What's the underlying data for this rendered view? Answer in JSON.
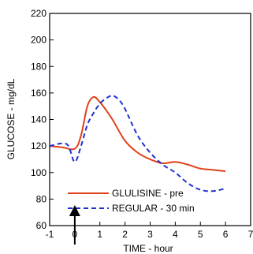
{
  "chart_data": {
    "type": "line",
    "xlabel": "TIME - hour",
    "ylabel": "GLUCOSE - mg/dL",
    "xlim": [
      -1,
      7
    ],
    "ylim": [
      60,
      220
    ],
    "x_ticks": [
      "-1",
      "0",
      "1",
      "2",
      "3",
      "4",
      "5",
      "6",
      "7"
    ],
    "y_ticks": [
      "60",
      "80",
      "100",
      "120",
      "140",
      "160",
      "180",
      "200",
      "220"
    ],
    "grid": false,
    "legend_position": "bottom-center",
    "annotation": {
      "type": "arrow",
      "x": 0,
      "points": "up"
    },
    "series": [
      {
        "name": "GLULISINE - pre",
        "color": "#e0401a",
        "style": "solid",
        "x": [
          -1,
          -0.5,
          0,
          0.25,
          0.5,
          0.75,
          1,
          1.25,
          1.5,
          2,
          2.5,
          3,
          3.5,
          4,
          4.5,
          5,
          5.5,
          6
        ],
        "y": [
          120,
          119,
          118,
          128,
          150,
          157,
          153,
          147,
          140,
          124,
          115,
          110,
          107,
          108,
          106,
          103,
          102,
          101
        ]
      },
      {
        "name": "REGULAR - 30 min",
        "color": "#1f2fd0",
        "style": "dashed",
        "x": [
          -1,
          -0.5,
          -0.25,
          0,
          0.25,
          0.5,
          0.75,
          1,
          1.25,
          1.5,
          1.75,
          2,
          2.5,
          3,
          3.5,
          4,
          4.5,
          5,
          5.5,
          6
        ],
        "y": [
          120,
          122,
          120,
          108,
          120,
          136,
          145,
          152,
          156,
          158,
          155,
          148,
          128,
          115,
          106,
          100,
          92,
          87,
          86,
          88
        ]
      }
    ]
  }
}
